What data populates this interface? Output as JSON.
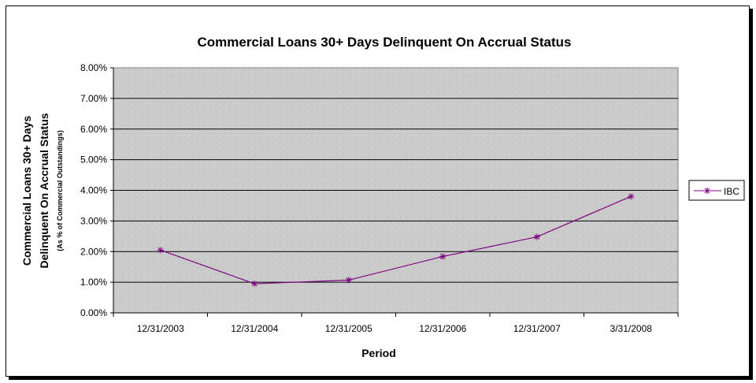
{
  "chart_data": {
    "type": "line",
    "title": "Commercial Loans 30+ Days Delinquent On Accrual Status",
    "xlabel": "Period",
    "ylabel_line1": "Commercial Loans 30+ Days",
    "ylabel_line2": "Delinquent On Accrual Status",
    "ylabel_note": "(As % of Commercial Outstandings)",
    "categories": [
      "12/31/2003",
      "12/31/2004",
      "12/31/2005",
      "12/31/2006",
      "12/31/2007",
      "3/31/2008"
    ],
    "series": [
      {
        "name": "IBC",
        "values": [
          2.05,
          0.95,
          1.07,
          1.84,
          2.48,
          3.8
        ],
        "color": "#800080"
      }
    ],
    "ylim": [
      0,
      8
    ],
    "yticks": [
      "0.00%",
      "1.00%",
      "2.00%",
      "3.00%",
      "4.00%",
      "5.00%",
      "6.00%",
      "7.00%",
      "8.00%"
    ],
    "grid": true,
    "legend": "right",
    "plot_background": "#c0c0c0"
  }
}
